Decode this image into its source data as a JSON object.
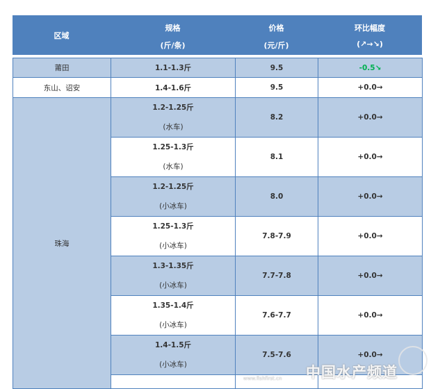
{
  "header": {
    "region": "区域",
    "spec": "规格",
    "spec_unit": "(斤/条)",
    "price": "价格",
    "price_unit": "(元/斤)",
    "change": "环比幅度",
    "change_unit": "(↗→↘)"
  },
  "rows": [
    {
      "region": "莆田",
      "spec": "1.1-1.3斤",
      "price": "9.5",
      "change": "-0.5↘",
      "change_color": "#00b050"
    },
    {
      "region": "东山、诏安",
      "spec": "1.4-1.6斤",
      "price": "9.5",
      "change": "+0.0→"
    }
  ],
  "zhuhai": {
    "region": "珠海",
    "rows": [
      {
        "spec": "1.2-1.25斤",
        "note": "(水车)",
        "price": "8.2",
        "change": "+0.0→"
      },
      {
        "spec": "1.25-1.3斤",
        "note": "(水车)",
        "price": "8.1",
        "change": "+0.0→"
      },
      {
        "spec": "1.2-1.25斤",
        "note": "(小冰车)",
        "price": "8.0",
        "change": "+0.0→"
      },
      {
        "spec": "1.25-1.3斤",
        "note": "(小冰车)",
        "price": "7.8-7.9",
        "change": "+0.0→"
      },
      {
        "spec": "1.3-1.35斤",
        "note": "(小冰车)",
        "price": "7.7-7.8",
        "change": "+0.0→"
      },
      {
        "spec": "1.35-1.4斤",
        "note": "(小冰车)",
        "price": "7.6-7.7",
        "change": "+0.0→"
      },
      {
        "spec": "1.4-1.5斤",
        "note": "(小冰车)",
        "price": "7.5-7.6",
        "change": "+0.0→"
      }
    ]
  },
  "watermark": {
    "name": "中国水产频道",
    "url": "www.fishfirst.cn"
  },
  "colors": {
    "header": "#4f81bd",
    "row_alt": "#b8cce4",
    "down": "#00b050"
  }
}
